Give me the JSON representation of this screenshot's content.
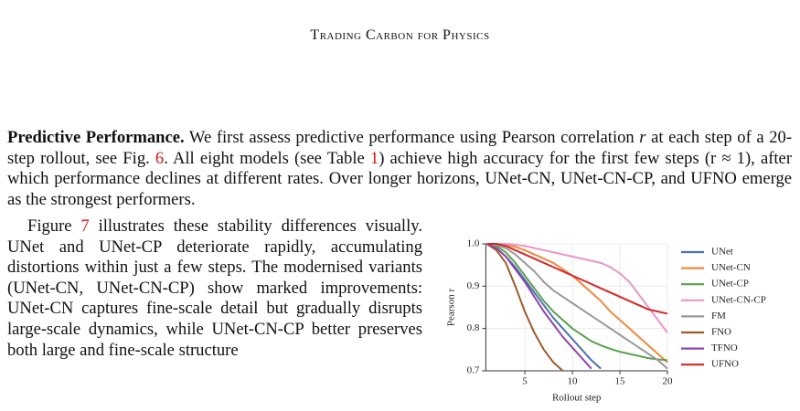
{
  "header": {
    "title": "Trading Carbon for Physics"
  },
  "paragraph_1": {
    "heading": "Predictive Performance.",
    "text_1": " We first assess predictive performance using Pearson correlation ",
    "math_r": "r",
    "text_2": " at each step of a 20-step rollout, see Fig. ",
    "ref_fig": "6",
    "text_3": ". All eight models (see Table ",
    "ref_table": "1",
    "text_4": ") achieve high accuracy for the first few steps (r ≈ 1), after which performance declines at different rates. Over longer horizons, UNet-CN, UNet-CN-CP, and UFNO emerge as the strongest performers."
  },
  "paragraph_2": {
    "lead": "Figure ",
    "ref_fig": "7",
    "text": " illustrates these stability differences visually. UNet and UNet-CP deteriorate rapidly, accumulating distortions within just a few steps. The modernised variants (UNet-CN, UNet-CN-CP) show marked improvements: UNet-CN captures fine-scale detail but gradually disrupts large-scale dynamics, while UNet-CN-CP better preserves both large and fine-scale structure"
  },
  "chart_data": {
    "type": "line",
    "xlabel": "Rollout step",
    "ylabel": "Pearson r",
    "x": [
      1,
      2,
      3,
      4,
      5,
      6,
      7,
      8,
      9,
      10,
      11,
      12,
      13,
      14,
      15,
      16,
      17,
      18,
      19,
      20
    ],
    "xlim": [
      0.9,
      20
    ],
    "ylim": [
      0.7,
      1.0
    ],
    "xticks": [
      5,
      10,
      15,
      20
    ],
    "yticks": [
      0.7,
      0.8,
      0.9,
      {
        "value": 1.0,
        "label": "1.0"
      }
    ],
    "grid": true,
    "legend": "right",
    "series": [
      {
        "name": "UNet",
        "color": "#4c72b0",
        "values": [
          1,
          0.99,
          0.97,
          0.945,
          0.915,
          0.885,
          0.855,
          0.825,
          0.8,
          0.775,
          0.75,
          0.725,
          0.705,
          null,
          null,
          null,
          null,
          null,
          null,
          null
        ]
      },
      {
        "name": "UNet-CN",
        "color": "#f0883e",
        "values": [
          1,
          1,
          0.998,
          0.993,
          0.985,
          0.975,
          0.965,
          0.955,
          0.94,
          0.925,
          0.905,
          0.885,
          0.865,
          0.84,
          0.82,
          0.8,
          0.78,
          0.76,
          0.74,
          0.72
        ]
      },
      {
        "name": "UNet-CP",
        "color": "#59a14f",
        "values": [
          1,
          0.995,
          0.98,
          0.955,
          0.925,
          0.895,
          0.865,
          0.84,
          0.82,
          0.8,
          0.785,
          0.77,
          0.76,
          0.752,
          0.745,
          0.74,
          0.735,
          0.73,
          0.727,
          0.725
        ]
      },
      {
        "name": "UNet-CN-CP",
        "color": "#e895c8",
        "values": [
          1,
          1,
          1,
          0.998,
          0.995,
          0.99,
          0.985,
          0.98,
          0.975,
          0.97,
          0.965,
          0.96,
          0.955,
          0.945,
          0.93,
          0.91,
          0.88,
          0.85,
          0.82,
          0.79
        ]
      },
      {
        "name": "FM",
        "color": "#999999",
        "values": [
          1,
          0.997,
          0.99,
          0.975,
          0.955,
          0.935,
          0.91,
          0.89,
          0.875,
          0.86,
          0.845,
          0.83,
          0.815,
          0.8,
          0.785,
          0.77,
          0.755,
          0.74,
          0.725,
          0.705
        ]
      },
      {
        "name": "FNO",
        "color": "#9c5b2a",
        "values": [
          1,
          0.985,
          0.955,
          0.9,
          0.84,
          0.79,
          0.75,
          0.72,
          0.7,
          null,
          null,
          null,
          null,
          null,
          null,
          null,
          null,
          null,
          null,
          null
        ]
      },
      {
        "name": "TFNO",
        "color": "#8e44ad",
        "values": [
          1,
          0.99,
          0.97,
          0.94,
          0.91,
          0.875,
          0.84,
          0.81,
          0.78,
          0.755,
          0.73,
          0.705,
          null,
          null,
          null,
          null,
          null,
          null,
          null,
          null
        ]
      },
      {
        "name": "UFNO",
        "color": "#d62728",
        "values": [
          1,
          1,
          0.995,
          0.985,
          0.975,
          0.965,
          0.955,
          0.945,
          0.935,
          0.925,
          0.915,
          0.905,
          0.895,
          0.885,
          0.875,
          0.865,
          0.855,
          0.845,
          0.84,
          0.835
        ]
      }
    ]
  }
}
